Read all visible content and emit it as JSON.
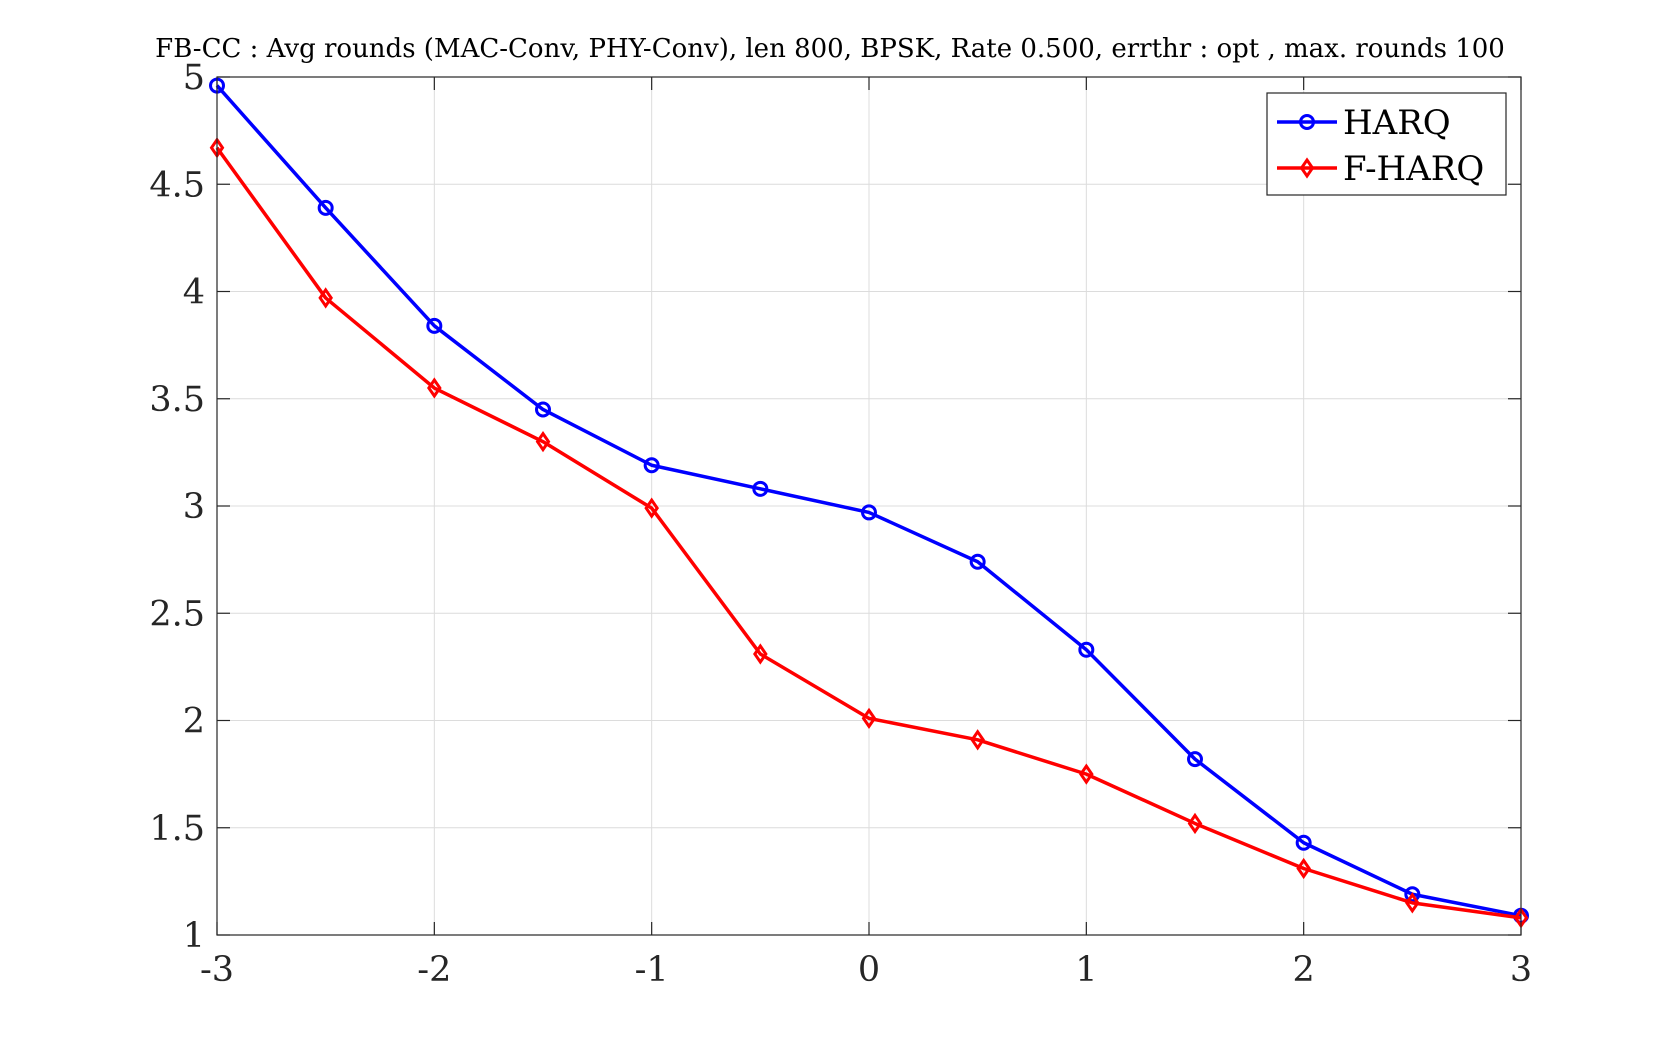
{
  "chart_data": {
    "type": "line",
    "title": "FB-CC : Avg rounds (MAC-Conv, PHY-Conv), len 800, BPSK, Rate 0.500, errthr : opt , max. rounds 100",
    "xlabel": "",
    "ylabel": "",
    "xlim": [
      -3,
      3
    ],
    "ylim": [
      1,
      5
    ],
    "xticks": [
      -3,
      -2,
      -1,
      0,
      1,
      2,
      3
    ],
    "xtick_labels": [
      "-3",
      "-2",
      "-1",
      "0",
      "1",
      "2",
      "3"
    ],
    "yticks": [
      1,
      1.5,
      2,
      2.5,
      3,
      3.5,
      4,
      4.5,
      5
    ],
    "ytick_labels": [
      "1",
      "1.5",
      "2",
      "2.5",
      "3",
      "3.5",
      "4",
      "4.5",
      "5"
    ],
    "grid": true,
    "legend_position": "top-right",
    "x": [
      -3,
      -2.5,
      -2,
      -1.5,
      -1,
      -0.5,
      0,
      0.5,
      1,
      1.5,
      2,
      2.5,
      3
    ],
    "series": [
      {
        "name": "HARQ",
        "color": "#0000ff",
        "marker": "circle",
        "values": [
          4.96,
          4.39,
          3.84,
          3.45,
          3.19,
          3.08,
          2.97,
          2.74,
          2.33,
          1.82,
          1.43,
          1.19,
          1.09
        ]
      },
      {
        "name": "F-HARQ",
        "color": "#ff0000",
        "marker": "diamond",
        "values": [
          4.67,
          3.97,
          3.55,
          3.3,
          2.99,
          2.31,
          2.01,
          1.91,
          1.75,
          1.52,
          1.31,
          1.15,
          1.08
        ]
      }
    ]
  }
}
